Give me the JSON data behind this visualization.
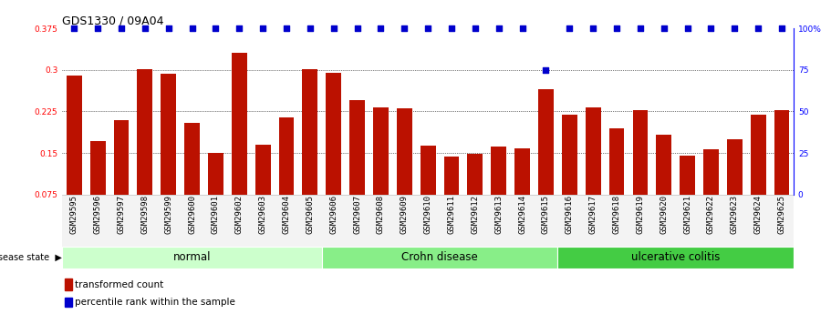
{
  "title": "GDS1330 / 09A04",
  "samples": [
    "GSM29595",
    "GSM29596",
    "GSM29597",
    "GSM29598",
    "GSM29599",
    "GSM29600",
    "GSM29601",
    "GSM29602",
    "GSM29603",
    "GSM29604",
    "GSM29605",
    "GSM29606",
    "GSM29607",
    "GSM29608",
    "GSM29609",
    "GSM29610",
    "GSM29611",
    "GSM29612",
    "GSM29613",
    "GSM29614",
    "GSM29615",
    "GSM29616",
    "GSM29617",
    "GSM29618",
    "GSM29619",
    "GSM29620",
    "GSM29621",
    "GSM29622",
    "GSM29623",
    "GSM29624",
    "GSM29625"
  ],
  "bar_values": [
    0.289,
    0.172,
    0.21,
    0.302,
    0.293,
    0.205,
    0.151,
    0.33,
    0.165,
    0.215,
    0.302,
    0.295,
    0.245,
    0.233,
    0.23,
    0.163,
    0.144,
    0.148,
    0.161,
    0.158,
    0.265,
    0.22,
    0.232,
    0.195,
    0.228,
    0.183,
    0.145,
    0.157,
    0.175,
    0.22,
    0.227
  ],
  "percentile_values": [
    100,
    100,
    100,
    100,
    100,
    100,
    100,
    100,
    100,
    100,
    100,
    100,
    100,
    100,
    100,
    100,
    100,
    100,
    100,
    100,
    75,
    100,
    100,
    100,
    100,
    100,
    100,
    100,
    100,
    100,
    100
  ],
  "disease_groups": [
    {
      "label": "normal",
      "start": 0,
      "end": 11,
      "color": "#ccffcc"
    },
    {
      "label": "Crohn disease",
      "start": 11,
      "end": 21,
      "color": "#88ee88"
    },
    {
      "label": "ulcerative colitis",
      "start": 21,
      "end": 31,
      "color": "#44cc44"
    }
  ],
  "bar_color": "#bb1100",
  "dot_color": "#0000cc",
  "ylim_left": [
    0.075,
    0.375
  ],
  "ylim_right": [
    0,
    100
  ],
  "yticks_left": [
    0.075,
    0.15,
    0.225,
    0.3,
    0.375
  ],
  "yticks_right": [
    0,
    25,
    50,
    75,
    100
  ],
  "background_color": "#ffffff",
  "title_fontsize": 9,
  "tick_fontsize": 6.5,
  "label_fontsize": 8.5
}
